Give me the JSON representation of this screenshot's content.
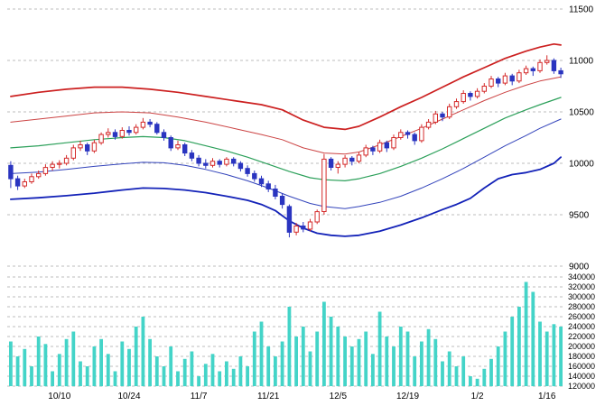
{
  "chart_data": {
    "type": "candlestick",
    "title": "",
    "n_points": 80,
    "legend": "none",
    "grid": "horizontal-dashed",
    "x_axis": {
      "labels": [
        "10/10",
        "10/24",
        "11/7",
        "11/21",
        "12/5",
        "12/19",
        "1/2",
        "1/16"
      ],
      "label_indices": [
        7,
        17,
        27,
        37,
        47,
        57,
        67,
        77
      ]
    },
    "price_axis": {
      "min": 9000,
      "max": 11500,
      "ticks": [
        9000,
        9500,
        10000,
        10500,
        11000,
        11500
      ]
    },
    "volume_axis": {
      "min": 120000,
      "max": 340000,
      "ticks": [
        120000,
        140000,
        160000,
        180000,
        200000,
        220000,
        240000,
        260000,
        280000,
        300000,
        320000,
        340000
      ]
    },
    "series": {
      "open": [
        9980,
        9850,
        9780,
        9820,
        9870,
        9900,
        9960,
        9990,
        10000,
        10050,
        10150,
        10180,
        10120,
        10200,
        10280,
        10300,
        10260,
        10320,
        10300,
        10350,
        10400,
        10380,
        10300,
        10250,
        10150,
        10180,
        10100,
        10050,
        10000,
        9980,
        10020,
        9990,
        10040,
        10000,
        9950,
        9900,
        9850,
        9800,
        9750,
        9680,
        9580,
        9330,
        9390,
        9360,
        9430,
        9530,
        10040,
        9960,
        9990,
        10050,
        10020,
        10080,
        10150,
        10120,
        10200,
        10150,
        10250,
        10300,
        10280,
        10220,
        10350,
        10400,
        10480,
        10450,
        10550,
        10600,
        10680,
        10650,
        10700,
        10750,
        10820,
        10780,
        10850,
        10800,
        10880,
        10920,
        10900,
        10980,
        11000,
        10900
      ],
      "high": [
        10020,
        9880,
        9850,
        9900,
        9930,
        9990,
        10020,
        10030,
        10080,
        10180,
        10220,
        10200,
        10230,
        10300,
        10340,
        10330,
        10350,
        10360,
        10380,
        10440,
        10430,
        10400,
        10330,
        10270,
        10220,
        10200,
        10130,
        10080,
        10040,
        10050,
        10040,
        10060,
        10060,
        10020,
        9980,
        9930,
        9880,
        9830,
        9790,
        9710,
        9600,
        9420,
        9430,
        9460,
        9550,
        10090,
        10060,
        10020,
        10080,
        10070,
        10110,
        10180,
        10170,
        10230,
        10220,
        10280,
        10330,
        10320,
        10300,
        10380,
        10430,
        10510,
        10500,
        10580,
        10630,
        10710,
        10700,
        10730,
        10780,
        10850,
        10840,
        10880,
        10870,
        10910,
        10950,
        10940,
        11010,
        11050,
        11020,
        10930
      ],
      "low": [
        9760,
        9740,
        9760,
        9800,
        9850,
        9880,
        9930,
        9950,
        9980,
        10030,
        10120,
        10080,
        10100,
        10180,
        10250,
        10230,
        10240,
        10270,
        10280,
        10330,
        10350,
        10280,
        10220,
        10120,
        10130,
        10070,
        10020,
        9970,
        9950,
        9960,
        9960,
        9970,
        9970,
        9920,
        9870,
        9820,
        9770,
        9720,
        9650,
        9560,
        9280,
        9300,
        9330,
        9340,
        9410,
        9500,
        9930,
        9900,
        9960,
        9980,
        10000,
        10060,
        10080,
        10100,
        10110,
        10130,
        10230,
        10240,
        10180,
        10200,
        10330,
        10380,
        10410,
        10430,
        10530,
        10580,
        10610,
        10630,
        10680,
        10730,
        10740,
        10760,
        10760,
        10780,
        10860,
        10850,
        10880,
        10960,
        10870,
        10830
      ],
      "close": [
        9850,
        9780,
        9820,
        9870,
        9900,
        9960,
        9990,
        10000,
        10050,
        10150,
        10180,
        10120,
        10200,
        10280,
        10300,
        10260,
        10320,
        10300,
        10350,
        10400,
        10380,
        10300,
        10250,
        10150,
        10180,
        10100,
        10050,
        10000,
        9980,
        10020,
        9990,
        10040,
        10000,
        9950,
        9900,
        9850,
        9800,
        9750,
        9680,
        9600,
        9330,
        9390,
        9360,
        9430,
        9530,
        10040,
        9960,
        9990,
        10050,
        10020,
        10080,
        10150,
        10120,
        10200,
        10150,
        10250,
        10300,
        10280,
        10220,
        10350,
        10400,
        10480,
        10450,
        10550,
        10600,
        10680,
        10650,
        10700,
        10750,
        10820,
        10780,
        10850,
        10800,
        10880,
        10920,
        10900,
        10980,
        11000,
        10900,
        10870
      ],
      "volume": [
        210000,
        180000,
        195000,
        160000,
        220000,
        205000,
        150000,
        185000,
        215000,
        230000,
        170000,
        160000,
        200000,
        215000,
        185000,
        150000,
        210000,
        195000,
        240000,
        260000,
        215000,
        180000,
        160000,
        200000,
        150000,
        175000,
        190000,
        140000,
        165000,
        185000,
        150000,
        170000,
        155000,
        180000,
        160000,
        230000,
        250000,
        200000,
        180000,
        210000,
        280000,
        220000,
        240000,
        190000,
        230000,
        290000,
        260000,
        240000,
        220000,
        200000,
        215000,
        230000,
        185000,
        270000,
        220000,
        200000,
        240000,
        230000,
        180000,
        210000,
        235000,
        215000,
        170000,
        190000,
        160000,
        180000,
        140000,
        135000,
        155000,
        175000,
        200000,
        230000,
        260000,
        280000,
        330000,
        310000,
        250000,
        230000,
        245000,
        240000
      ]
    },
    "overlays": [
      {
        "name": "upper-band-2sigma",
        "color": "#cc2020",
        "width": 1.7,
        "points": [
          [
            0,
            10650
          ],
          [
            4,
            10690
          ],
          [
            8,
            10720
          ],
          [
            12,
            10740
          ],
          [
            16,
            10740
          ],
          [
            20,
            10720
          ],
          [
            24,
            10690
          ],
          [
            28,
            10650
          ],
          [
            32,
            10610
          ],
          [
            36,
            10570
          ],
          [
            39,
            10520
          ],
          [
            42,
            10420
          ],
          [
            45,
            10350
          ],
          [
            48,
            10330
          ],
          [
            50,
            10360
          ],
          [
            53,
            10450
          ],
          [
            56,
            10550
          ],
          [
            59,
            10640
          ],
          [
            62,
            10740
          ],
          [
            65,
            10840
          ],
          [
            68,
            10930
          ],
          [
            71,
            11020
          ],
          [
            74,
            11090
          ],
          [
            76,
            11130
          ],
          [
            78,
            11160
          ],
          [
            79,
            11150
          ]
        ]
      },
      {
        "name": "upper-band-1sigma",
        "color": "#cc4444",
        "width": 1,
        "points": [
          [
            0,
            10400
          ],
          [
            4,
            10430
          ],
          [
            8,
            10460
          ],
          [
            12,
            10490
          ],
          [
            16,
            10500
          ],
          [
            20,
            10490
          ],
          [
            24,
            10450
          ],
          [
            28,
            10400
          ],
          [
            32,
            10340
          ],
          [
            36,
            10280
          ],
          [
            39,
            10230
          ],
          [
            42,
            10150
          ],
          [
            45,
            10100
          ],
          [
            48,
            10090
          ],
          [
            50,
            10110
          ],
          [
            53,
            10180
          ],
          [
            56,
            10260
          ],
          [
            59,
            10340
          ],
          [
            62,
            10430
          ],
          [
            65,
            10520
          ],
          [
            68,
            10610
          ],
          [
            71,
            10690
          ],
          [
            74,
            10760
          ],
          [
            76,
            10800
          ],
          [
            79,
            10840
          ]
        ]
      },
      {
        "name": "middle-band-sma",
        "color": "#2ca05a",
        "width": 1.2,
        "points": [
          [
            0,
            10150
          ],
          [
            4,
            10170
          ],
          [
            8,
            10200
          ],
          [
            12,
            10230
          ],
          [
            16,
            10250
          ],
          [
            19,
            10260
          ],
          [
            22,
            10250
          ],
          [
            25,
            10220
          ],
          [
            28,
            10170
          ],
          [
            31,
            10120
          ],
          [
            34,
            10060
          ],
          [
            37,
            9990
          ],
          [
            40,
            9920
          ],
          [
            43,
            9860
          ],
          [
            45,
            9840
          ],
          [
            48,
            9830
          ],
          [
            50,
            9850
          ],
          [
            53,
            9900
          ],
          [
            56,
            9970
          ],
          [
            59,
            10050
          ],
          [
            62,
            10140
          ],
          [
            65,
            10240
          ],
          [
            68,
            10340
          ],
          [
            71,
            10440
          ],
          [
            74,
            10520
          ],
          [
            76,
            10570
          ],
          [
            79,
            10640
          ]
        ]
      },
      {
        "name": "lower-band-1sigma",
        "color": "#3344bb",
        "width": 1,
        "points": [
          [
            0,
            9900
          ],
          [
            4,
            9915
          ],
          [
            8,
            9940
          ],
          [
            12,
            9970
          ],
          [
            16,
            9995
          ],
          [
            19,
            10010
          ],
          [
            22,
            10005
          ],
          [
            25,
            9980
          ],
          [
            28,
            9940
          ],
          [
            31,
            9890
          ],
          [
            34,
            9830
          ],
          [
            37,
            9760
          ],
          [
            40,
            9680
          ],
          [
            43,
            9610
          ],
          [
            45,
            9580
          ],
          [
            48,
            9560
          ],
          [
            50,
            9580
          ],
          [
            53,
            9620
          ],
          [
            56,
            9680
          ],
          [
            59,
            9760
          ],
          [
            62,
            9850
          ],
          [
            65,
            9950
          ],
          [
            68,
            10060
          ],
          [
            71,
            10170
          ],
          [
            74,
            10270
          ],
          [
            76,
            10340
          ],
          [
            79,
            10430
          ]
        ]
      },
      {
        "name": "lower-band-2sigma",
        "color": "#1322b8",
        "width": 1.8,
        "points": [
          [
            0,
            9650
          ],
          [
            4,
            9665
          ],
          [
            8,
            9685
          ],
          [
            12,
            9710
          ],
          [
            16,
            9740
          ],
          [
            19,
            9760
          ],
          [
            22,
            9755
          ],
          [
            25,
            9740
          ],
          [
            28,
            9715
          ],
          [
            31,
            9680
          ],
          [
            34,
            9640
          ],
          [
            36,
            9600
          ],
          [
            38,
            9540
          ],
          [
            40,
            9440
          ],
          [
            42,
            9370
          ],
          [
            44,
            9320
          ],
          [
            46,
            9300
          ],
          [
            48,
            9290
          ],
          [
            50,
            9300
          ],
          [
            53,
            9340
          ],
          [
            56,
            9400
          ],
          [
            59,
            9470
          ],
          [
            62,
            9550
          ],
          [
            64,
            9600
          ],
          [
            66,
            9660
          ],
          [
            68,
            9760
          ],
          [
            70,
            9850
          ],
          [
            72,
            9890
          ],
          [
            74,
            9910
          ],
          [
            76,
            9940
          ],
          [
            78,
            10000
          ],
          [
            79,
            10060
          ]
        ]
      }
    ],
    "colors": {
      "up_stroke": "#d42a2a",
      "up_fill": "#ffffff",
      "down": "#2a35c0",
      "volume": "#44d4c8",
      "grid": "#bcbcbc",
      "text": "#000000",
      "background": "#ffffff"
    }
  }
}
